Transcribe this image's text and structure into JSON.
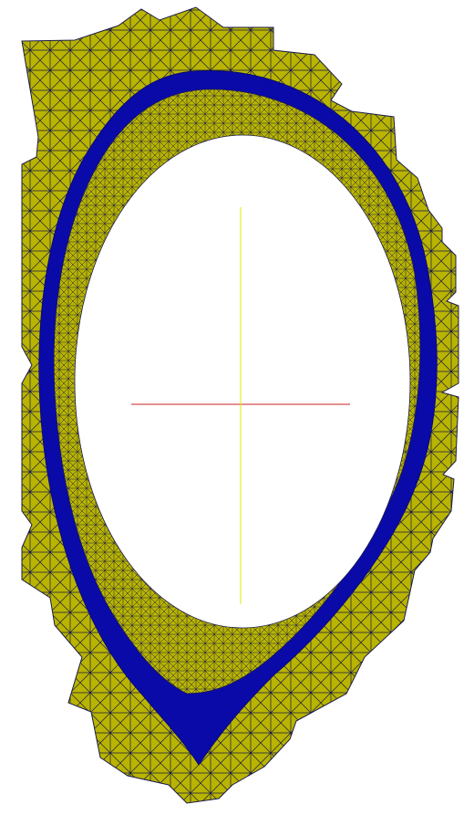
{
  "diagram": {
    "kind": "triangular-mesh-cross-section",
    "regions": [
      {
        "name": "outer-mesh-region",
        "role": "outer wall mesh"
      },
      {
        "name": "separatrix-band",
        "role": "blue band"
      },
      {
        "name": "inner-mesh-ring",
        "role": "inner ring mesh"
      },
      {
        "name": "core-void",
        "role": "empty core"
      }
    ],
    "crosshair": {
      "horizontal_color": "#cc2222",
      "vertical_color": "#e6e600"
    },
    "colors": {
      "background": "#ffffff",
      "mesh_fill": "#b8b400",
      "mesh_line": "#1a1a4a",
      "band_fill": "#0a0aa8",
      "core_fill": "#ffffff"
    }
  }
}
